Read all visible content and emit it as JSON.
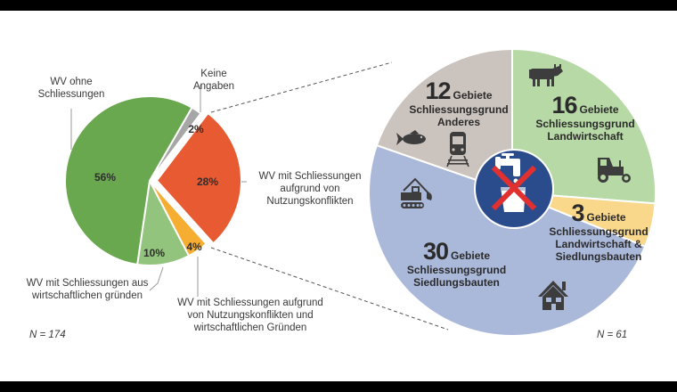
{
  "chart_data": [
    {
      "type": "pie",
      "title": "",
      "note": "N = 174",
      "unit": "%",
      "start_angle_deg": 30,
      "slices": [
        {
          "label": "Keine Angaben",
          "value": 2,
          "display": "2%",
          "color": "#a6a6a6",
          "exploded": false
        },
        {
          "label": "WV mit Schliessungen aufgrund von Nutzungskonflikten",
          "value": 28,
          "display": "28%",
          "color": "#e85a31",
          "exploded": true
        },
        {
          "label": "WV mit Schliessungen aufgrund von Nutzungskonflikten und wirtschaftlichen Gründen",
          "value": 4,
          "display": "4%",
          "color": "#f5ae31",
          "exploded": false
        },
        {
          "label": "WV mit Schliessungen aus wirtschaftlichen gründen",
          "value": 10,
          "display": "10%",
          "color": "#93c47d",
          "exploded": false
        },
        {
          "label": "WV ohne Schliessungen",
          "value": 56,
          "display": "56%",
          "color": "#6aa84f",
          "exploded": false
        }
      ]
    },
    {
      "type": "pie",
      "title": "",
      "note": "N = 61",
      "unit": "Gebiete",
      "start_angle_deg": 0,
      "center_icon": "no-drinking-water-icon",
      "slices": [
        {
          "label": "Schliessungsgrund Landwirtschaft",
          "value": 16,
          "color": "#b7d9a6",
          "icons": [
            "cow-icon",
            "tractor-icon"
          ]
        },
        {
          "label": "Schliessungsgrund Landwirtschaft & Siedlungsbauten",
          "value": 3,
          "color": "#fad88b",
          "icons": []
        },
        {
          "label": "Schliessungsgrund Siedlungsbauten",
          "value": 30,
          "color": "#aab8da",
          "icons": [
            "excavator-icon",
            "house-icon"
          ]
        },
        {
          "label": "Schliessungsgrund Anderes",
          "value": 12,
          "color": "#cbc3bd",
          "icons": [
            "fish-icon",
            "train-icon"
          ]
        }
      ]
    }
  ],
  "left": {
    "labels": {
      "ohne": [
        "WV ohne",
        "Schliessungen"
      ],
      "keine": [
        "Keine",
        "Angaben"
      ],
      "nutzung": [
        "WV mit Schliessungen",
        "aufgrund von",
        "Nutzungskonflikten"
      ],
      "wirtschaft": [
        "WV mit Schliessungen aus",
        "wirtschaftlichen gründen"
      ],
      "beide": [
        "WV mit Schliessungen aufgrund",
        "von Nutzungskonflikten und",
        "wirtschaftlichen Gründen"
      ]
    },
    "pct": {
      "ohne": "56%",
      "keine": "2%",
      "nutzung": "28%",
      "wirtschaft": "10%",
      "beide": "4%"
    },
    "n": "N = 174"
  },
  "right": {
    "unit": "Gebiete",
    "segments": {
      "anderes": {
        "count": "12",
        "reason": [
          "Schliessungsgrund",
          "Anderes"
        ]
      },
      "landwirtschaft": {
        "count": "16",
        "reason": [
          "Schliessungsgrund",
          "Landwirtschaft"
        ]
      },
      "beide": {
        "count": "3",
        "reason": [
          "Schliessungsgrund",
          "Landwirtschaft &",
          "Siedlungsbauten"
        ]
      },
      "siedlung": {
        "count": "30",
        "reason": [
          "Schliessungsgrund",
          "Siedlungsbauten"
        ]
      }
    },
    "n": "N = 61"
  },
  "colors": {
    "leader": "#9a9a9a",
    "dash": "#555555",
    "icon": "#3d3d3d",
    "center_bg": "#2b4c8c",
    "cross": "#e03030"
  }
}
